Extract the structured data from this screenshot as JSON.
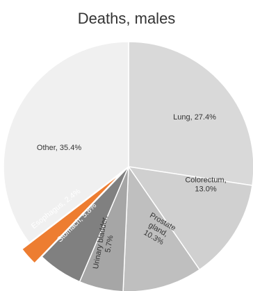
{
  "chart_data": {
    "type": "pie",
    "title": "Deaths, males",
    "slices": [
      {
        "name": "Lung",
        "value": 27.4,
        "label_line1": "Lung, 27.4%",
        "label_line2": "",
        "label_line3": "",
        "color": "#d9d9d9"
      },
      {
        "name": "Colorectum",
        "value": 13.0,
        "label_line1": "Colorectum,",
        "label_line2": "13.0%",
        "label_line3": "",
        "color": "#d0d0d0"
      },
      {
        "name": "Prostate gland",
        "value": 10.3,
        "label_line1": "Prostate",
        "label_line2": "gland,",
        "label_line3": "10.3%",
        "color": "#bfbfbf"
      },
      {
        "name": "Urinary bladder",
        "value": 5.7,
        "label_line1": "Urinary bladder,",
        "label_line2": "5.7%",
        "label_line3": "",
        "color": "#a6a6a6"
      },
      {
        "name": "Stomach",
        "value": 5.8,
        "label_line1": "Stomach, 5.8%",
        "label_line2": "",
        "label_line3": "",
        "color": "#808080"
      },
      {
        "name": "Esophagus",
        "value": 2.4,
        "label_line1": "Esophagus, 2.4%",
        "label_line2": "",
        "label_line3": "",
        "color": "#ed7d31",
        "exploded": true
      },
      {
        "name": "Other",
        "value": 35.4,
        "label_line1": "Other, 35.4%",
        "label_line2": "",
        "label_line3": "",
        "color": "#f0f0f0"
      }
    ],
    "start_angle_deg": 0,
    "direction": "clockwise"
  }
}
